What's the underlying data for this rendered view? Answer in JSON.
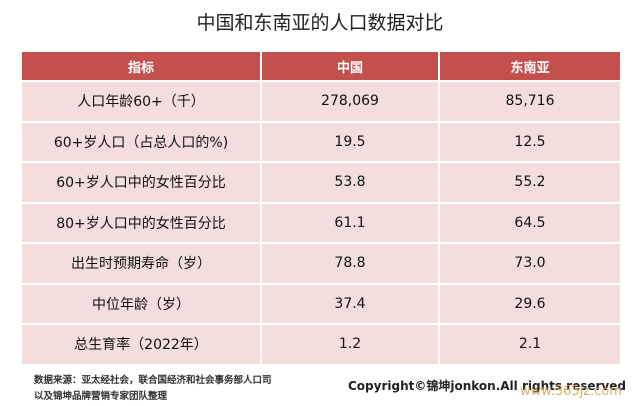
{
  "header": {
    "title": "中国和东南亚的人口数据对比"
  },
  "table": {
    "columns": [
      "指标",
      "中国",
      "东南亚"
    ],
    "rows": [
      [
        "人口年龄60+（千）",
        "278,069",
        "85,716"
      ],
      [
        "60+岁人口（占总人口的%)",
        "19.5",
        "12.5"
      ],
      [
        "60+岁人口中的女性百分比",
        "53.8",
        "55.2"
      ],
      [
        "80+岁人口中的女性百分比",
        "61.1",
        "64.5"
      ],
      [
        "出生时预期寿命（岁）",
        "78.8",
        "73.0"
      ],
      [
        "中位年龄（岁）",
        "37.4",
        "29.6"
      ],
      [
        "总生育率（2022年）",
        "1.2",
        "2.1"
      ]
    ]
  },
  "footer": {
    "source": [
      "数据来源：亚太经社会，联合国经济和社会事务部人口司",
      "以及锦坤品牌营销专家团队整理"
    ],
    "copyright": "Copyright©锦坤jonkon.All rights reserved",
    "watermark": "www.365jz.com"
  }
}
